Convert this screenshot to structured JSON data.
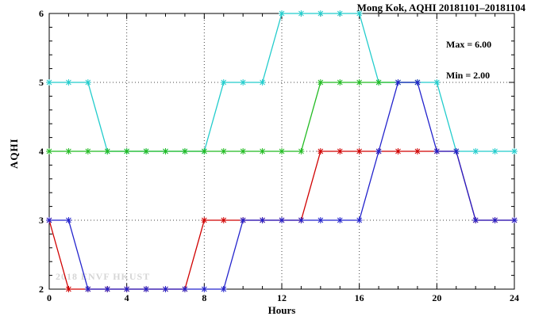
{
  "chart_data": {
    "type": "line",
    "title": "Mong Kok, AQHI 20181101–20181104",
    "xlabel": "Hours",
    "ylabel": "AQHI",
    "xlim": [
      0,
      24
    ],
    "ylim": [
      2,
      6
    ],
    "xticks": [
      0,
      4,
      8,
      12,
      16,
      20,
      24
    ],
    "yticks": [
      2,
      3,
      4,
      5,
      6
    ],
    "x_minor_step": 1,
    "y_minor_step": 0.2,
    "grid": "dotted",
    "legend": "none",
    "annotations": {
      "max": "Max = 6.00",
      "min": "Min = 2.00"
    },
    "watermark": "2018 ENVF HKUST",
    "series": [
      {
        "name": "red-series",
        "color": "#d00000",
        "marker": "asterisk",
        "x": [
          0,
          1,
          2,
          3,
          4,
          5,
          6,
          7,
          8,
          9,
          10,
          11,
          12,
          13,
          14,
          15,
          16,
          17,
          18,
          19,
          20,
          21,
          22,
          23,
          24
        ],
        "values": [
          3,
          2,
          2,
          2,
          2,
          2,
          2,
          2,
          3,
          3,
          3,
          3,
          3,
          3,
          4,
          4,
          4,
          4,
          4,
          4,
          4,
          4,
          3,
          3,
          3
        ]
      },
      {
        "name": "cyan-series",
        "color": "#22cccc",
        "marker": "asterisk",
        "x": [
          0,
          1,
          2,
          3,
          4,
          5,
          6,
          7,
          8,
          9,
          10,
          11,
          12,
          13,
          14,
          15,
          16,
          17,
          18,
          19,
          20,
          21,
          22,
          23,
          24
        ],
        "values": [
          5,
          5,
          5,
          4,
          4,
          4,
          4,
          4,
          4,
          5,
          5,
          5,
          6,
          6,
          6,
          6,
          6,
          5,
          5,
          5,
          5,
          4,
          4,
          4,
          4
        ]
      },
      {
        "name": "green-series",
        "color": "#22bb22",
        "marker": "asterisk",
        "x": [
          0,
          1,
          2,
          3,
          4,
          5,
          6,
          7,
          8,
          9,
          10,
          11,
          12,
          13,
          14,
          15,
          16,
          17,
          18,
          19
        ],
        "values": [
          4,
          4,
          4,
          4,
          4,
          4,
          4,
          4,
          4,
          4,
          4,
          4,
          4,
          4,
          5,
          5,
          5,
          5,
          5,
          5
        ]
      },
      {
        "name": "blue-series",
        "color": "#2222cc",
        "marker": "asterisk",
        "x": [
          0,
          1,
          2,
          3,
          4,
          5,
          6,
          7,
          8,
          9,
          10,
          11,
          12,
          13,
          14,
          15,
          16,
          17,
          18,
          19,
          20,
          21,
          22,
          23,
          24
        ],
        "values": [
          3,
          3,
          2,
          2,
          2,
          2,
          2,
          2,
          2,
          2,
          3,
          3,
          3,
          3,
          3,
          3,
          3,
          4,
          5,
          5,
          4,
          4,
          3,
          3,
          3
        ]
      }
    ]
  }
}
